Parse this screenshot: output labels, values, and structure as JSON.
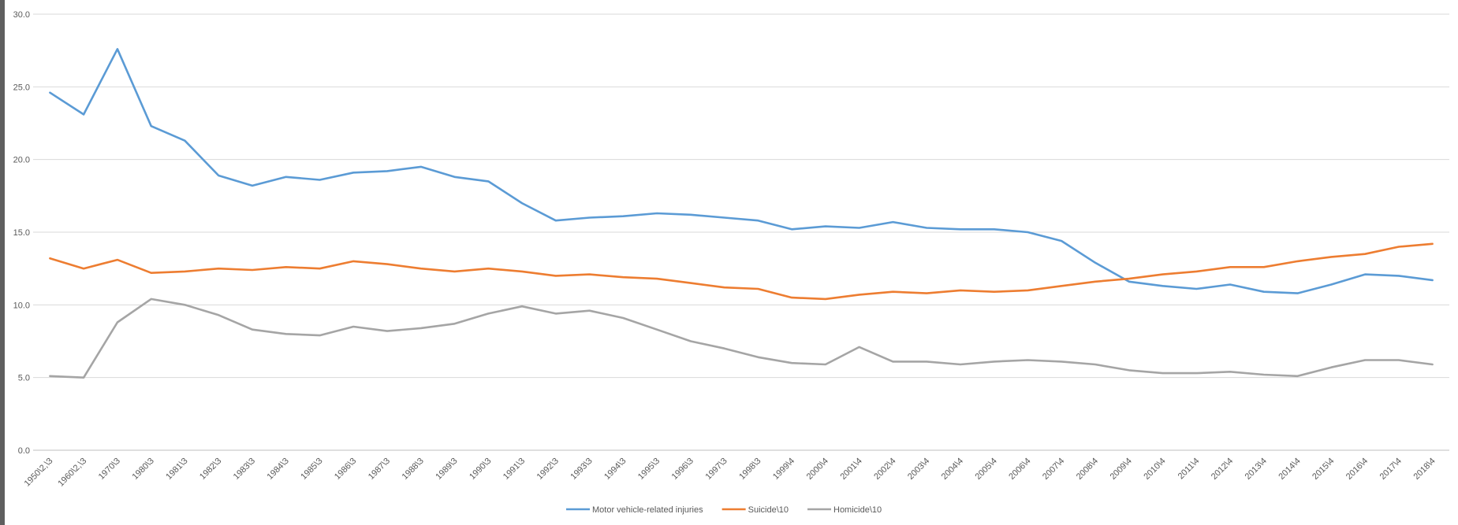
{
  "chart_data": {
    "type": "line",
    "title": "",
    "xlabel": "",
    "ylabel": "",
    "ylim": [
      0,
      30
    ],
    "yticks": [
      "0.0",
      "5.0",
      "10.0",
      "15.0",
      "20.0",
      "25.0",
      "30.0"
    ],
    "grid": true,
    "legend_position": "bottom",
    "categories": [
      "1950\\2,\\3",
      "1960\\2,\\3",
      "1970\\3",
      "1980\\3",
      "1981\\3",
      "1982\\3",
      "1983\\3",
      "1984\\3",
      "1985\\3",
      "1986\\3",
      "1987\\3",
      "1988\\3",
      "1989\\3",
      "1990\\3",
      "1991\\3",
      "1992\\3",
      "1993\\3",
      "1994\\3",
      "1995\\3",
      "1996\\3",
      "1997\\3",
      "1998\\3",
      "1999\\4",
      "2000\\4",
      "2001\\4",
      "2002\\4",
      "2003\\4",
      "2004\\4",
      "2005\\4",
      "2006\\4",
      "2007\\4",
      "2008\\4",
      "2009\\4",
      "2010\\4",
      "2011\\4",
      "2012\\4",
      "2013\\4",
      "2014\\4",
      "2015\\4",
      "2016\\4",
      "2017\\4",
      "2018\\4"
    ],
    "series": [
      {
        "name": "Motor vehicle-related injuries",
        "color": "#5b9bd5",
        "values": [
          24.6,
          23.1,
          27.6,
          22.3,
          21.3,
          18.9,
          18.2,
          18.8,
          18.6,
          19.1,
          19.2,
          19.5,
          18.8,
          18.5,
          17.0,
          15.8,
          16.0,
          16.1,
          16.3,
          16.2,
          16.0,
          15.8,
          15.2,
          15.4,
          15.3,
          15.7,
          15.3,
          15.2,
          15.2,
          15.0,
          14.4,
          12.9,
          11.6,
          11.3,
          11.1,
          11.4,
          10.9,
          10.8,
          11.4,
          12.1,
          12.0,
          11.7
        ]
      },
      {
        "name": "Suicide\\10",
        "color": "#ed7d31",
        "values": [
          13.2,
          12.5,
          13.1,
          12.2,
          12.3,
          12.5,
          12.4,
          12.6,
          12.5,
          13.0,
          12.8,
          12.5,
          12.3,
          12.5,
          12.3,
          12.0,
          12.1,
          11.9,
          11.8,
          11.5,
          11.2,
          11.1,
          10.5,
          10.4,
          10.7,
          10.9,
          10.8,
          11.0,
          10.9,
          11.0,
          11.3,
          11.6,
          11.8,
          12.1,
          12.3,
          12.6,
          12.6,
          13.0,
          13.3,
          13.5,
          14.0,
          14.2
        ]
      },
      {
        "name": "Homicide\\10",
        "color": "#a5a5a5",
        "values": [
          5.1,
          5.0,
          8.8,
          10.4,
          10.0,
          9.3,
          8.3,
          8.0,
          7.9,
          8.5,
          8.2,
          8.4,
          8.7,
          9.4,
          9.9,
          9.4,
          9.6,
          9.1,
          8.3,
          7.5,
          7.0,
          6.4,
          6.0,
          5.9,
          7.1,
          6.1,
          6.1,
          5.9,
          6.1,
          6.2,
          6.1,
          5.9,
          5.5,
          5.3,
          5.3,
          5.4,
          5.2,
          5.1,
          5.7,
          6.2,
          6.2,
          5.9
        ]
      }
    ]
  }
}
